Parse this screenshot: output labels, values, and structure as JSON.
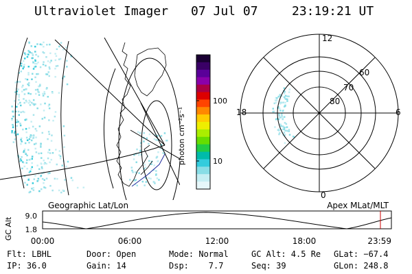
{
  "header": {
    "title": "Ultraviolet Imager",
    "date": "07 Jul 07",
    "time": "23:19:21 UT"
  },
  "colorbar": {
    "label": "photon cm⁻²s⁻¹",
    "ticks": [
      "100",
      "10"
    ],
    "colors": [
      "#1a0033",
      "#3a0066",
      "#5a0099",
      "#8a00aa",
      "#aa0044",
      "#dd0000",
      "#ff4400",
      "#ff8800",
      "#ffcc00",
      "#eeee00",
      "#aaee00",
      "#66dd00",
      "#22cc44",
      "#00bbaa",
      "#33ccdd",
      "#88dde6",
      "#c6eef3",
      "#e6f7fa"
    ]
  },
  "polar": {
    "labels": {
      "top": "12",
      "bottom": "0",
      "left": "18",
      "right": "6"
    },
    "ring_labels": [
      "60",
      "70",
      "80"
    ]
  },
  "alt_plot": {
    "y_axis_label": "GC Alt",
    "y_ticks": [
      "9.0",
      "1.8"
    ],
    "x_ticks": [
      "00:00",
      "06:00",
      "12:00",
      "18:00",
      "23:59"
    ],
    "left_title": "Geographic Lat/Lon",
    "right_title": "Apex MLat/MLT"
  },
  "info": {
    "row1": [
      {
        "label": "Flt: LBHL"
      },
      {
        "label": "Door: Open"
      },
      {
        "label": "Mode: Normal"
      },
      {
        "label": "GC Alt: 4.5 Re"
      },
      {
        "label": "GLat: −67.4"
      }
    ],
    "row2": [
      {
        "label": "IP: 36.0"
      },
      {
        "label": "Gain: 14"
      },
      {
        "label": "Dsp:    7.7"
      },
      {
        "label": "Seq: 39"
      },
      {
        "label": "GLon: 248.8"
      }
    ]
  }
}
